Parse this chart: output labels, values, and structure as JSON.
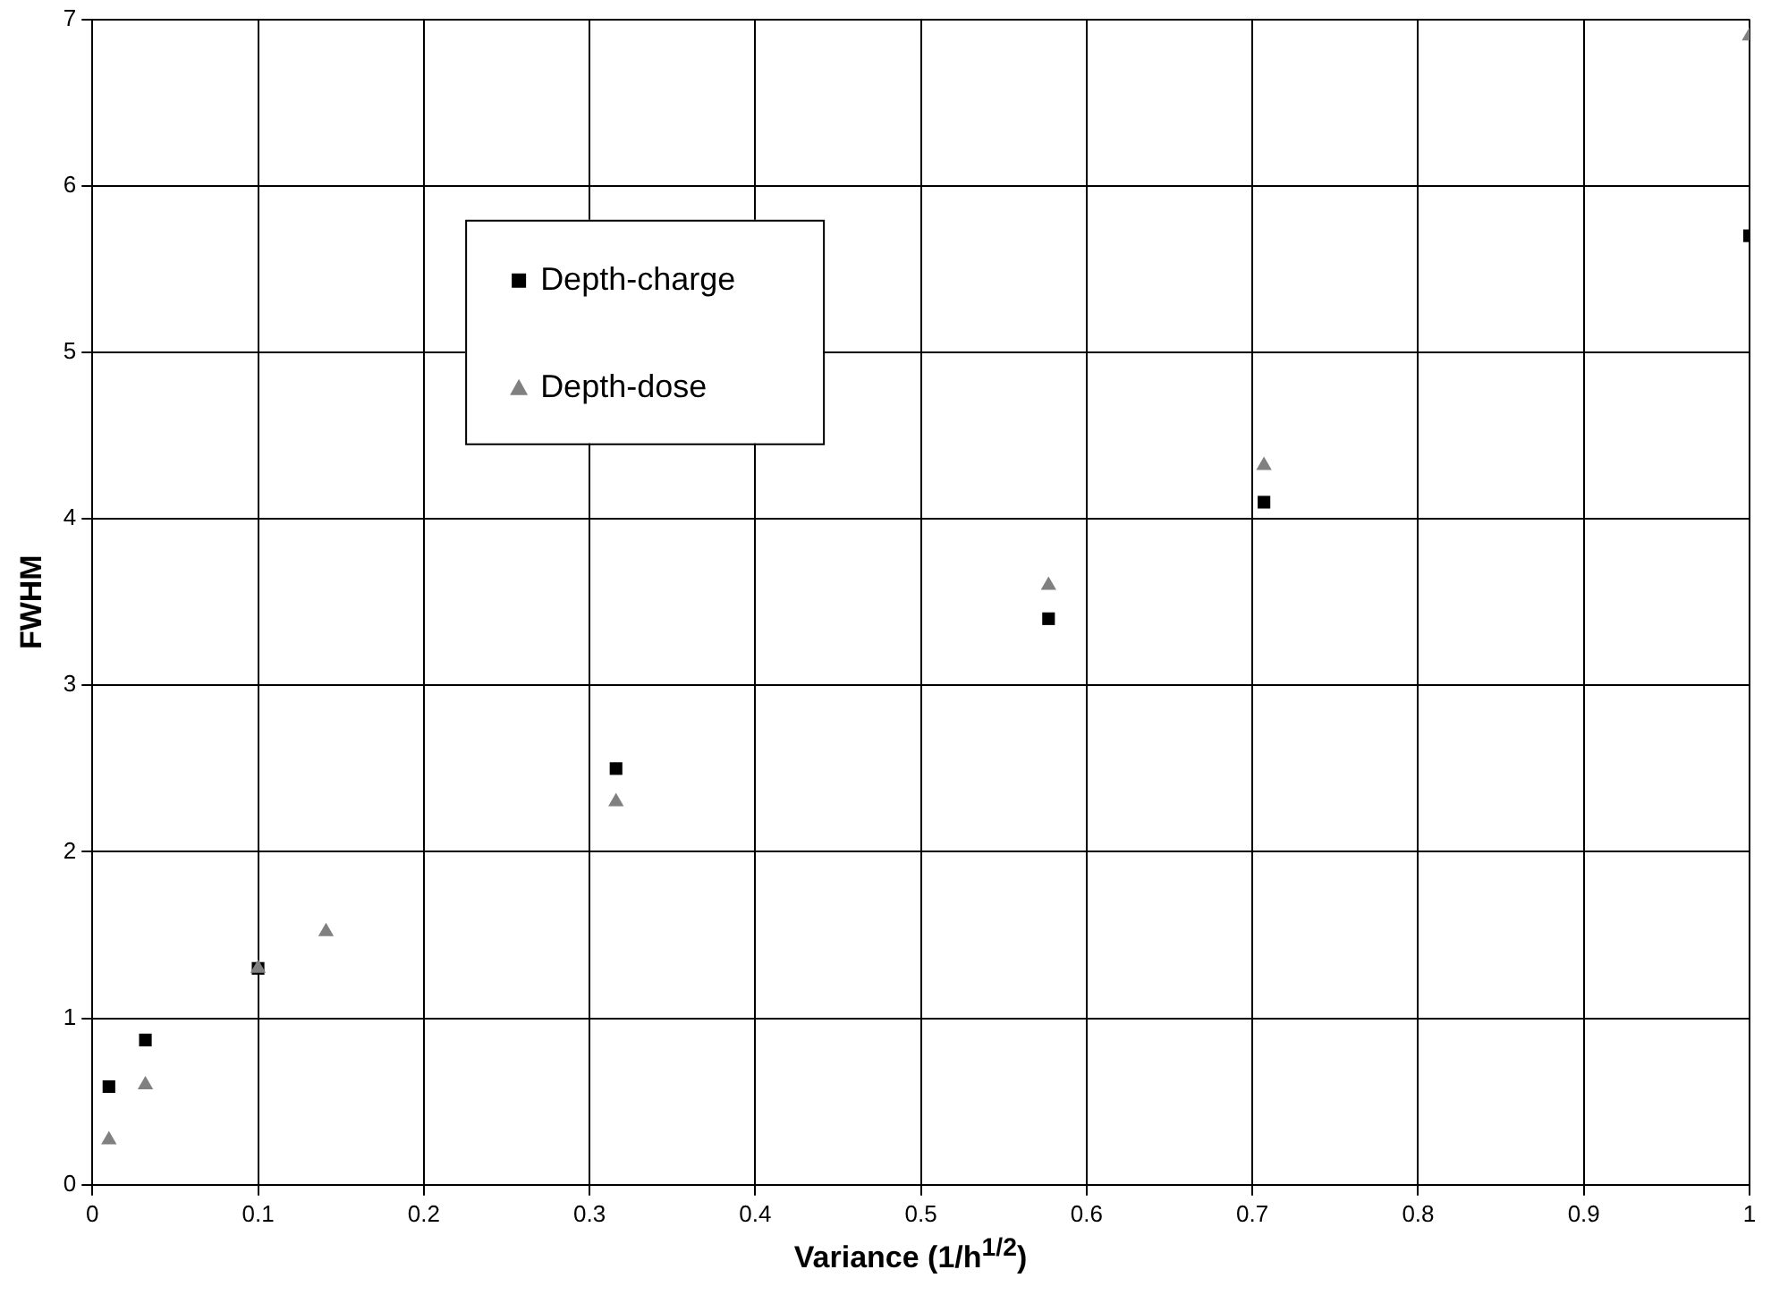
{
  "chart_data": {
    "type": "scatter",
    "xlabel": "Variance (1/h$^{1/2}$)",
    "ylabel": "FWHM",
    "xlim": [
      0,
      1
    ],
    "xticks": [
      0,
      0.1,
      0.2,
      0.3,
      0.4,
      0.5,
      0.6,
      0.7,
      0.8,
      0.9,
      1
    ],
    "ylim": [
      0,
      7
    ],
    "yticks": [
      0,
      1,
      2,
      3,
      4,
      5,
      6,
      7
    ],
    "grid": true,
    "legend": "top left",
    "series": [
      {
        "name": "Depth-charge",
        "color": "#000000",
        "marker": "square",
        "x": [
          0.01,
          0.032,
          0.1,
          0.316,
          0.577,
          0.707,
          1
        ],
        "values": [
          0.59,
          0.87,
          1.3,
          2.5,
          3.4,
          4.1,
          5.7
        ]
      },
      {
        "name": "Depth-dose",
        "color": "#808080",
        "marker": "triangle",
        "x": [
          0.01,
          0.032,
          0.1,
          0.141,
          0.316,
          0.577,
          0.707,
          1
        ],
        "values": [
          0.27,
          0.6,
          1.3,
          1.52,
          2.3,
          3.6,
          4.32,
          6.9
        ]
      }
    ]
  }
}
